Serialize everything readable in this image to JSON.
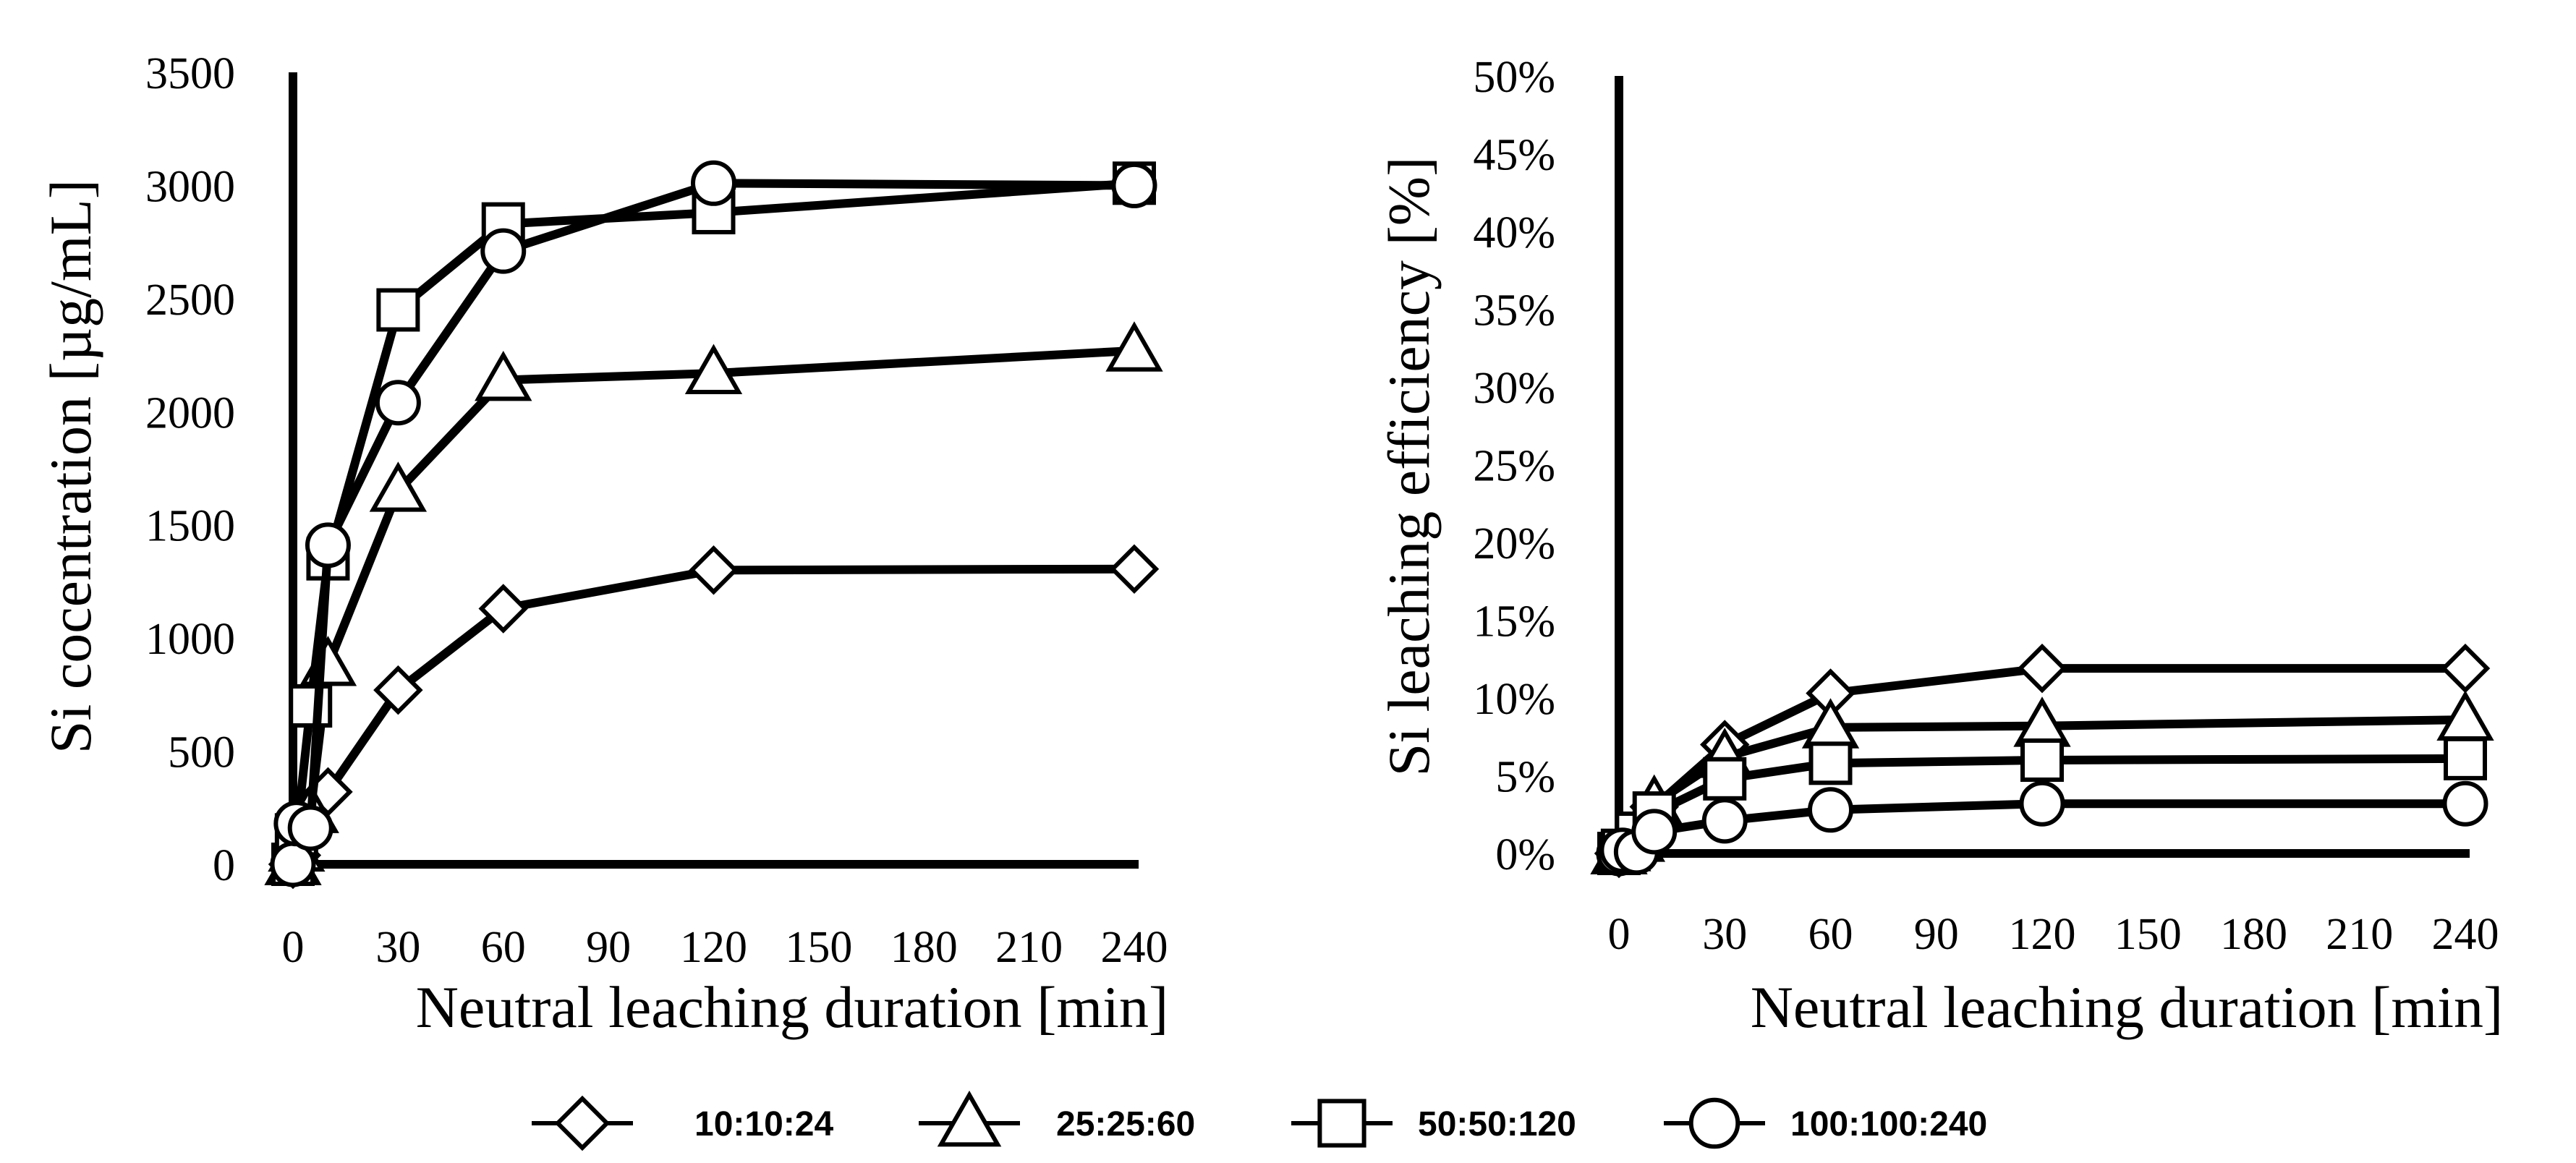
{
  "chart_data": [
    {
      "type": "line",
      "xlabel": "Neutral leaching duration [min]",
      "ylabel": "Si cocentration [µg/mL]",
      "xlim": [
        0,
        240
      ],
      "ylim": [
        0,
        3500
      ],
      "x_ticks": [
        "0",
        "30",
        "60",
        "90",
        "120",
        "150",
        "180",
        "210",
        "240"
      ],
      "y_ticks": [
        "0",
        "500",
        "1000",
        "1500",
        "2000",
        "2500",
        "3000",
        "3500"
      ],
      "series": [
        {
          "name": "10:10:24",
          "marker": "diamond",
          "x": [
            0,
            1,
            5,
            10,
            30,
            60,
            120,
            240
          ],
          "y": [
            0,
            40,
            150,
            320,
            770,
            1130,
            1300,
            1305
          ]
        },
        {
          "name": "25:25:60",
          "marker": "triangle",
          "x": [
            0,
            1,
            5,
            10,
            30,
            60,
            120,
            240
          ],
          "y": [
            0,
            60,
            230,
            880,
            1650,
            2140,
            2170,
            2270
          ]
        },
        {
          "name": "50:50:120",
          "marker": "square",
          "x": [
            0,
            1,
            5,
            10,
            30,
            60,
            120,
            240
          ],
          "y": [
            0,
            130,
            700,
            1350,
            2450,
            2830,
            2880,
            3010
          ]
        },
        {
          "name": "100:100:240",
          "marker": "circle",
          "x": [
            0,
            1,
            5,
            10,
            30,
            60,
            120,
            240
          ],
          "y": [
            0,
            180,
            160,
            1410,
            2040,
            2710,
            3010,
            3000
          ]
        }
      ]
    },
    {
      "type": "line",
      "xlabel": "Neutral leaching duration [min]",
      "ylabel": "Si leaching efficiency [%]",
      "xlim": [
        0,
        240
      ],
      "ylim": [
        0,
        50
      ],
      "x_ticks": [
        "0",
        "30",
        "60",
        "90",
        "120",
        "150",
        "180",
        "210",
        "240"
      ],
      "y_ticks": [
        "0%",
        "5%",
        "10%",
        "15%",
        "20%",
        "25%",
        "30%",
        "35%",
        "40%",
        "45%",
        "50%"
      ],
      "series": [
        {
          "name": "10:10:24",
          "marker": "diamond",
          "x": [
            0,
            1,
            5,
            10,
            30,
            60,
            120,
            240
          ],
          "y": [
            0,
            0.3,
            1.3,
            3.0,
            7.0,
            10.3,
            11.9,
            11.9
          ]
        },
        {
          "name": "25:25:60",
          "marker": "triangle",
          "x": [
            0,
            1,
            5,
            10,
            30,
            60,
            120,
            240
          ],
          "y": [
            0,
            0.2,
            0.8,
            3.2,
            6.2,
            8.1,
            8.2,
            8.6
          ]
        },
        {
          "name": "50:50:120",
          "marker": "square",
          "x": [
            0,
            1,
            5,
            10,
            30,
            60,
            120,
            240
          ],
          "y": [
            0,
            0.2,
            1.3,
            2.6,
            4.8,
            5.8,
            6.0,
            6.1
          ]
        },
        {
          "name": "100:100:240",
          "marker": "circle",
          "x": [
            0,
            1,
            5,
            10,
            30,
            60,
            120,
            240
          ],
          "y": [
            0,
            0.2,
            0.1,
            1.4,
            2.1,
            2.8,
            3.2,
            3.2
          ]
        }
      ]
    }
  ],
  "legend": [
    {
      "label": "10:10:24",
      "marker": "diamond"
    },
    {
      "label": "25:25:60",
      "marker": "triangle"
    },
    {
      "label": "50:50:120",
      "marker": "square"
    },
    {
      "label": "100:100:240",
      "marker": "circle"
    }
  ]
}
